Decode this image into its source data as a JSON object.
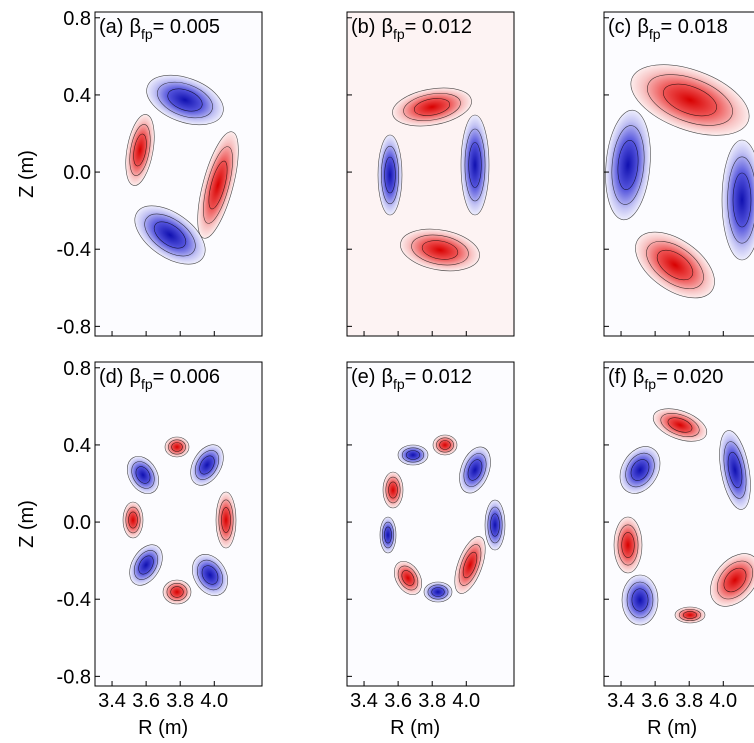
{
  "chart_data": [
    {
      "type": "contour",
      "title": {
        "panel": "(a)",
        "symbol": "β",
        "subscript": "fp",
        "value": "= 0.005"
      },
      "ylabel": "Z (m)",
      "xlim": [
        3.3,
        4.28
      ],
      "ylim": [
        -0.85,
        0.83
      ],
      "xticks": [
        3.4,
        3.6,
        3.8,
        {
          "value": 4,
          "label": "4.0"
        }
      ],
      "yticks": [
        0.8,
        0.4,
        {
          "value": 0,
          "label": "0.0"
        },
        -0.4,
        -0.8
      ],
      "show_xtick_labels": false,
      "show_ytick_labels": true
    },
    {
      "type": "contour",
      "title": {
        "panel": "(b)",
        "symbol": "β",
        "subscript": "fp",
        "value": "= 0.012"
      },
      "xlim": [
        3.3,
        4.28
      ],
      "ylim": [
        -0.85,
        0.83
      ],
      "xticks": [
        3.4,
        3.6,
        3.8,
        {
          "value": 4,
          "label": "4.0"
        }
      ],
      "yticks": [
        0.8,
        0.4,
        {
          "value": 0,
          "label": "0.0"
        },
        -0.4,
        -0.8
      ],
      "show_xtick_labels": false,
      "show_ytick_labels": false
    },
    {
      "type": "contour",
      "title": {
        "panel": "(c)",
        "symbol": "β",
        "subscript": "fp",
        "value": "= 0.018"
      },
      "xlim": [
        3.3,
        4.28
      ],
      "ylim": [
        -0.85,
        0.83
      ],
      "xticks": [
        3.4,
        3.6,
        3.8,
        {
          "value": 4,
          "label": "4.0"
        }
      ],
      "yticks": [
        0.8,
        0.4,
        {
          "value": 0,
          "label": "0.0"
        },
        -0.4,
        -0.8
      ],
      "show_xtick_labels": false,
      "show_ytick_labels": false
    },
    {
      "type": "contour",
      "title": {
        "panel": "(d)",
        "symbol": "β",
        "subscript": "fp",
        "value": "= 0.006"
      },
      "ylabel": "Z (m)",
      "xlabel": "R (m)",
      "xlim": [
        3.3,
        4.28
      ],
      "ylim": [
        -0.85,
        0.83
      ],
      "xticks": [
        3.4,
        3.6,
        3.8,
        {
          "value": 4,
          "label": "4.0"
        }
      ],
      "yticks": [
        0.8,
        0.4,
        {
          "value": 0,
          "label": "0.0"
        },
        -0.4,
        -0.8
      ],
      "show_xtick_labels": true,
      "show_ytick_labels": true
    },
    {
      "type": "contour",
      "title": {
        "panel": "(e)",
        "symbol": "β",
        "subscript": "fp",
        "value": "= 0.012"
      },
      "xlabel": "R (m)",
      "xlim": [
        3.3,
        4.28
      ],
      "ylim": [
        -0.85,
        0.83
      ],
      "xticks": [
        3.4,
        3.6,
        3.8,
        {
          "value": 4,
          "label": "4.0"
        }
      ],
      "yticks": [
        0.8,
        0.4,
        {
          "value": 0,
          "label": "0.0"
        },
        -0.4,
        -0.8
      ],
      "show_xtick_labels": true,
      "show_ytick_labels": false
    },
    {
      "type": "contour",
      "title": {
        "panel": "(f)",
        "symbol": "β",
        "subscript": "fp",
        "value": "= 0.020"
      },
      "xlabel": "R (m)",
      "xlim": [
        3.3,
        4.28
      ],
      "ylim": [
        -0.85,
        0.83
      ],
      "xticks": [
        3.4,
        3.6,
        3.8,
        {
          "value": 4,
          "label": "4.0"
        }
      ],
      "yticks": [
        0.8,
        0.4,
        {
          "value": 0,
          "label": "0.0"
        },
        -0.4,
        -0.8
      ],
      "show_xtick_labels": true,
      "show_ytick_labels": false
    }
  ]
}
